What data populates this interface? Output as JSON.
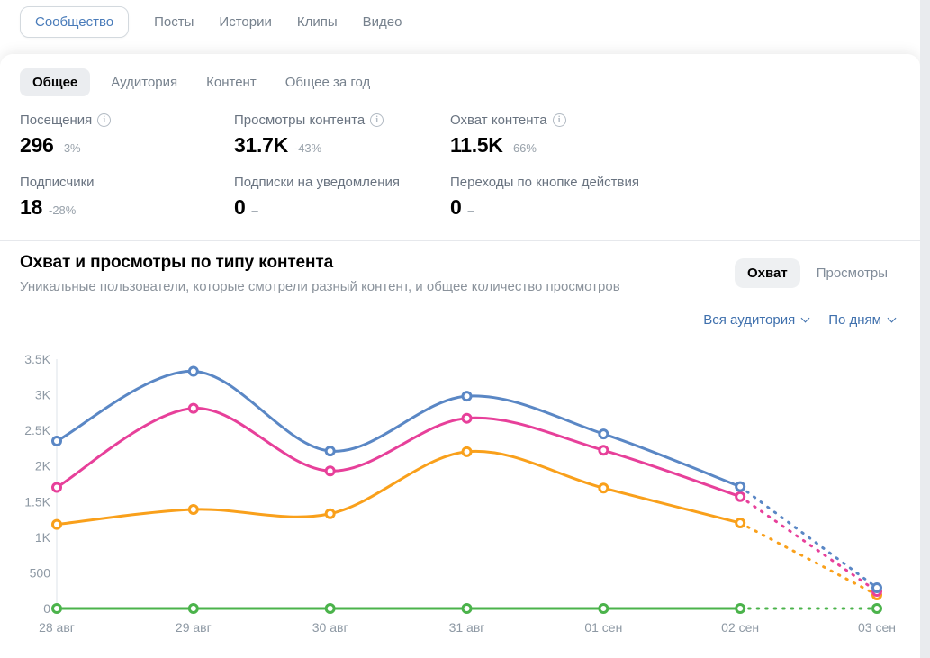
{
  "top_tabs": {
    "items": [
      {
        "label": "Сообщество",
        "active": true
      },
      {
        "label": "Посты",
        "active": false
      },
      {
        "label": "Истории",
        "active": false
      },
      {
        "label": "Клипы",
        "active": false
      },
      {
        "label": "Видео",
        "active": false
      }
    ]
  },
  "sub_tabs": {
    "items": [
      {
        "label": "Общее",
        "active": true
      },
      {
        "label": "Аудитория",
        "active": false
      },
      {
        "label": "Контент",
        "active": false
      },
      {
        "label": "Общее за год",
        "active": false
      }
    ]
  },
  "stats": {
    "items": [
      {
        "label": "Посещения",
        "has_info": true,
        "value": "296",
        "delta": "-3%"
      },
      {
        "label": "Просмотры контента",
        "has_info": true,
        "value": "31.7K",
        "delta": "-43%"
      },
      {
        "label": "Охват контента",
        "has_info": true,
        "value": "11.5K",
        "delta": "-66%"
      },
      {
        "label": "Подписчики",
        "has_info": false,
        "value": "18",
        "delta": "-28%"
      },
      {
        "label": "Подписки на уведомления",
        "has_info": false,
        "value": "0",
        "delta": "–"
      },
      {
        "label": "Переходы по кнопке действия",
        "has_info": false,
        "value": "0",
        "delta": "–"
      }
    ]
  },
  "section": {
    "title": "Охват и просмотры по типу контента",
    "subtitle": "Уникальные пользователи, которые смотрели разный контент, и общее количество просмотров",
    "toggle": {
      "options": [
        {
          "label": "Охват",
          "active": true
        },
        {
          "label": "Просмотры",
          "active": false
        }
      ]
    },
    "filters": [
      {
        "label": "Вся аудитория"
      },
      {
        "label": "По дням"
      }
    ]
  },
  "chart_data": {
    "type": "line",
    "x": [
      "28 авг",
      "29 авг",
      "30 авг",
      "31 авг",
      "01 сен",
      "02 сен",
      "03 сен"
    ],
    "series": [
      {
        "name": "blue",
        "color": "#5A87C5",
        "values": [
          2350,
          3330,
          2210,
          2980,
          2450,
          1710,
          290
        ]
      },
      {
        "name": "pink",
        "color": "#E7409A",
        "values": [
          1700,
          2810,
          1930,
          2670,
          2220,
          1570,
          240
        ]
      },
      {
        "name": "orange",
        "color": "#F9A01B",
        "values": [
          1180,
          1390,
          1330,
          2200,
          1690,
          1200,
          190
        ]
      },
      {
        "name": "green",
        "color": "#4BB34B",
        "values": [
          0,
          0,
          0,
          0,
          0,
          0,
          0
        ]
      }
    ],
    "ylim": [
      0,
      3500
    ],
    "y_ticks": [
      0,
      500,
      1000,
      1500,
      2000,
      2500,
      3000,
      3500
    ],
    "y_tick_labels": [
      "0",
      "500",
      "1K",
      "1.5K",
      "2K",
      "2.5K",
      "3K",
      "3.5K"
    ],
    "grid": false,
    "legend": "none",
    "last_segment_dashed": true,
    "marker": "circle",
    "axis_color": "#dde3e9"
  }
}
